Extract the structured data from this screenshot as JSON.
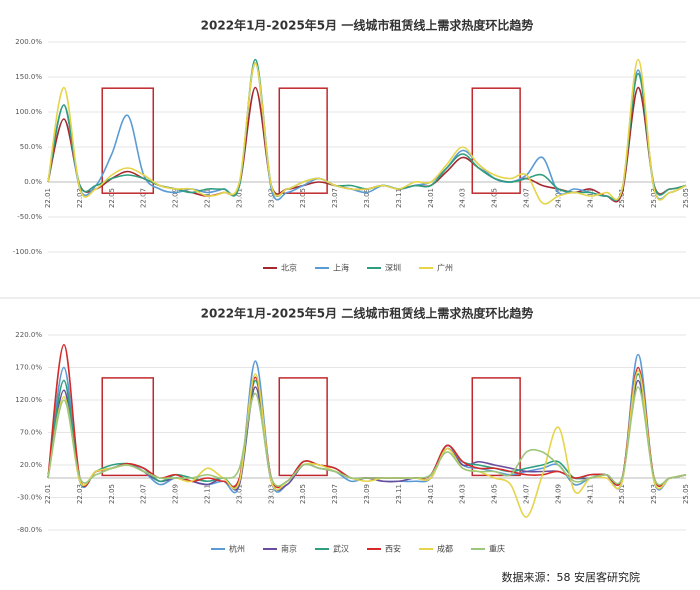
{
  "chart_data": [
    {
      "type": "line",
      "title": "2022年1月-2025年5月 一线城市租赁线上需求热度环比趋势",
      "categories": [
        "22.01",
        null,
        "22.03",
        null,
        "22.05",
        null,
        "22.07",
        null,
        "22.09",
        null,
        "22.11",
        null,
        "23.01",
        null,
        "23.03",
        null,
        "23.05",
        null,
        "23.07",
        null,
        "23.09",
        null,
        "23.11",
        null,
        "24.01",
        null,
        "24.03",
        null,
        "24.05",
        null,
        "24.07",
        null,
        "24.09",
        null,
        "24.11",
        null,
        "25.01",
        null,
        "25.03",
        null,
        "25.05"
      ],
      "ylim": [
        -100,
        200
      ],
      "yticks": [
        {
          "value": -100,
          "label": "-100.0%"
        },
        {
          "value": -50,
          "label": "-50.0%"
        },
        {
          "value": 0,
          "label": "0.0%"
        },
        {
          "value": 50,
          "label": "50.0%"
        },
        {
          "value": 100,
          "label": "100.0%"
        },
        {
          "value": 150,
          "label": "150.0%"
        },
        {
          "value": 200,
          "label": "200.0%"
        }
      ],
      "grid": true,
      "series": [
        {
          "name": "北京",
          "color": "#a5282f",
          "values": [
            0,
            90,
            -5,
            -10,
            5,
            15,
            5,
            -5,
            -10,
            -15,
            -20,
            -15,
            -5,
            135,
            -5,
            -10,
            -5,
            0,
            -5,
            -10,
            -10,
            -5,
            -10,
            -5,
            -5,
            15,
            35,
            20,
            5,
            0,
            5,
            -5,
            -10,
            -15,
            -10,
            -20,
            -15,
            135,
            -5,
            -10,
            -5
          ]
        },
        {
          "name": "上海",
          "color": "#5b9bd5",
          "values": [
            0,
            110,
            -10,
            -5,
            40,
            95,
            10,
            -10,
            -15,
            -10,
            -15,
            -10,
            -5,
            170,
            -10,
            -15,
            -5,
            5,
            -5,
            -10,
            -15,
            -5,
            -10,
            -5,
            0,
            20,
            45,
            25,
            5,
            0,
            10,
            35,
            -15,
            -10,
            -15,
            -20,
            -10,
            160,
            -10,
            -15,
            -5
          ]
        },
        {
          "name": "深圳",
          "color": "#2e9e7e",
          "values": [
            0,
            110,
            -5,
            -5,
            5,
            10,
            5,
            -5,
            -10,
            -15,
            -10,
            -10,
            -5,
            175,
            -5,
            -10,
            0,
            5,
            -5,
            -5,
            -10,
            -5,
            -10,
            -5,
            -5,
            20,
            40,
            20,
            5,
            0,
            5,
            10,
            -10,
            -15,
            -15,
            -20,
            -10,
            155,
            -5,
            -10,
            -5
          ]
        },
        {
          "name": "广州",
          "color": "#e6d44a",
          "values": [
            0,
            135,
            -10,
            -10,
            10,
            20,
            10,
            -5,
            -10,
            -10,
            -20,
            -15,
            0,
            170,
            -5,
            -10,
            0,
            5,
            -5,
            -10,
            -10,
            -5,
            -10,
            0,
            0,
            25,
            50,
            25,
            10,
            5,
            10,
            -30,
            -20,
            -15,
            -20,
            -15,
            -10,
            175,
            -10,
            -15,
            -5
          ]
        }
      ]
    },
    {
      "type": "line",
      "title": "2022年1月-2025年5月 二线城市租赁线上需求热度环比趋势",
      "categories": [
        "22.01",
        null,
        "22.03",
        null,
        "22.05",
        null,
        "22.07",
        null,
        "22.09",
        null,
        "22.11",
        null,
        "23.01",
        null,
        "23.03",
        null,
        "23.05",
        null,
        "23.07",
        null,
        "23.09",
        null,
        "23.11",
        null,
        "24.01",
        null,
        "24.03",
        null,
        "24.05",
        null,
        "24.07",
        null,
        "24.09",
        null,
        "24.11",
        null,
        "25.01",
        null,
        "25.03",
        null,
        "25.05"
      ],
      "ylim": [
        -80,
        220
      ],
      "yticks": [
        {
          "value": -80,
          "label": "-80.0%"
        },
        {
          "value": -30,
          "label": "-30.0%"
        },
        {
          "value": 20,
          "label": "20.0%"
        },
        {
          "value": 70,
          "label": "70.0%"
        },
        {
          "value": 120,
          "label": "120.0%"
        },
        {
          "value": 170,
          "label": "170.0%"
        },
        {
          "value": 220,
          "label": "220.0%"
        }
      ],
      "grid": true,
      "series": [
        {
          "name": "杭州",
          "color": "#5b9bd5",
          "values": [
            0,
            170,
            -5,
            10,
            15,
            22,
            10,
            -10,
            0,
            -5,
            -10,
            -5,
            -10,
            180,
            -5,
            -10,
            20,
            15,
            10,
            -5,
            0,
            -5,
            -5,
            -5,
            0,
            50,
            20,
            15,
            10,
            5,
            10,
            15,
            20,
            -10,
            0,
            5,
            -5,
            190,
            -5,
            0,
            5
          ]
        },
        {
          "name": "南京",
          "color": "#6a4c9c",
          "values": [
            0,
            135,
            -5,
            10,
            15,
            20,
            10,
            -5,
            0,
            -5,
            -10,
            0,
            -10,
            140,
            -5,
            -10,
            20,
            15,
            10,
            0,
            0,
            -5,
            -5,
            0,
            0,
            45,
            20,
            25,
            20,
            15,
            10,
            10,
            10,
            0,
            0,
            5,
            0,
            150,
            0,
            0,
            5
          ]
        },
        {
          "name": "武汉",
          "color": "#2e9e7e",
          "values": [
            0,
            150,
            -5,
            10,
            20,
            22,
            15,
            -5,
            5,
            0,
            -5,
            0,
            -5,
            150,
            0,
            -5,
            25,
            20,
            15,
            0,
            0,
            0,
            0,
            0,
            5,
            50,
            25,
            20,
            15,
            10,
            15,
            20,
            25,
            0,
            5,
            5,
            0,
            160,
            0,
            0,
            5
          ]
        },
        {
          "name": "西安",
          "color": "#d42a2a",
          "values": [
            0,
            205,
            0,
            10,
            15,
            22,
            15,
            0,
            5,
            -5,
            0,
            -5,
            0,
            155,
            0,
            -5,
            25,
            20,
            15,
            0,
            0,
            0,
            0,
            0,
            5,
            50,
            25,
            15,
            15,
            10,
            5,
            5,
            10,
            0,
            5,
            5,
            0,
            170,
            0,
            0,
            5
          ]
        },
        {
          "name": "成都",
          "color": "#e6d44a",
          "values": [
            0,
            125,
            -5,
            10,
            15,
            20,
            10,
            0,
            0,
            -5,
            15,
            0,
            -5,
            160,
            -5,
            -5,
            20,
            20,
            10,
            0,
            -5,
            0,
            0,
            0,
            0,
            45,
            15,
            10,
            0,
            -10,
            -60,
            5,
            78,
            -20,
            0,
            0,
            -5,
            165,
            -5,
            0,
            5
          ]
        },
        {
          "name": "重庆",
          "color": "#9cc67a",
          "values": [
            0,
            120,
            0,
            5,
            15,
            20,
            10,
            0,
            0,
            0,
            5,
            0,
            15,
            130,
            0,
            -5,
            20,
            15,
            10,
            0,
            0,
            0,
            0,
            0,
            5,
            40,
            15,
            10,
            10,
            5,
            40,
            40,
            20,
            -5,
            0,
            5,
            0,
            140,
            0,
            0,
            5
          ]
        }
      ]
    }
  ],
  "source": "数据来源：58 安居客研究院"
}
